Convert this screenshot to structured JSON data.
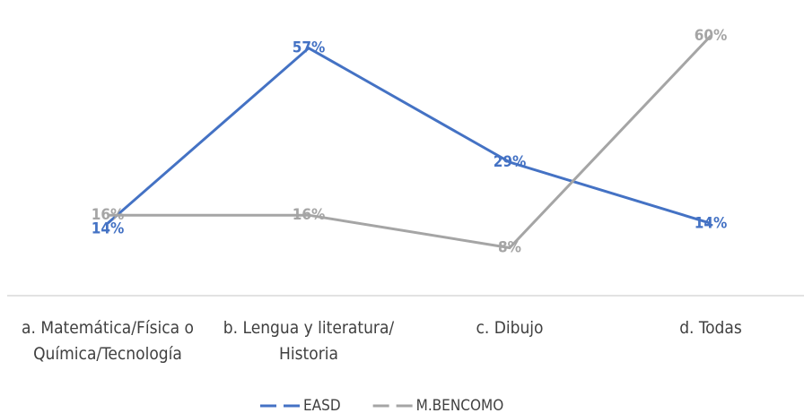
{
  "chart_data": {
    "type": "line",
    "categories": [
      "a. Matemática/Física o Química/Tecnología",
      "b. Lengua y literatura/ Historia",
      "c. Dibujo",
      "d. Todas"
    ],
    "series": [
      {
        "name": "EASD",
        "color": "#4472c4",
        "values": [
          14,
          57,
          29,
          14
        ],
        "value_labels": [
          "14%",
          "57%",
          "29%",
          "14%"
        ]
      },
      {
        "name": "M.BENCOMO",
        "color": "#a5a5a5",
        "values": [
          16,
          16,
          8,
          60
        ],
        "value_labels": [
          "16%",
          "16%",
          "8%",
          "60%"
        ]
      }
    ]
  }
}
